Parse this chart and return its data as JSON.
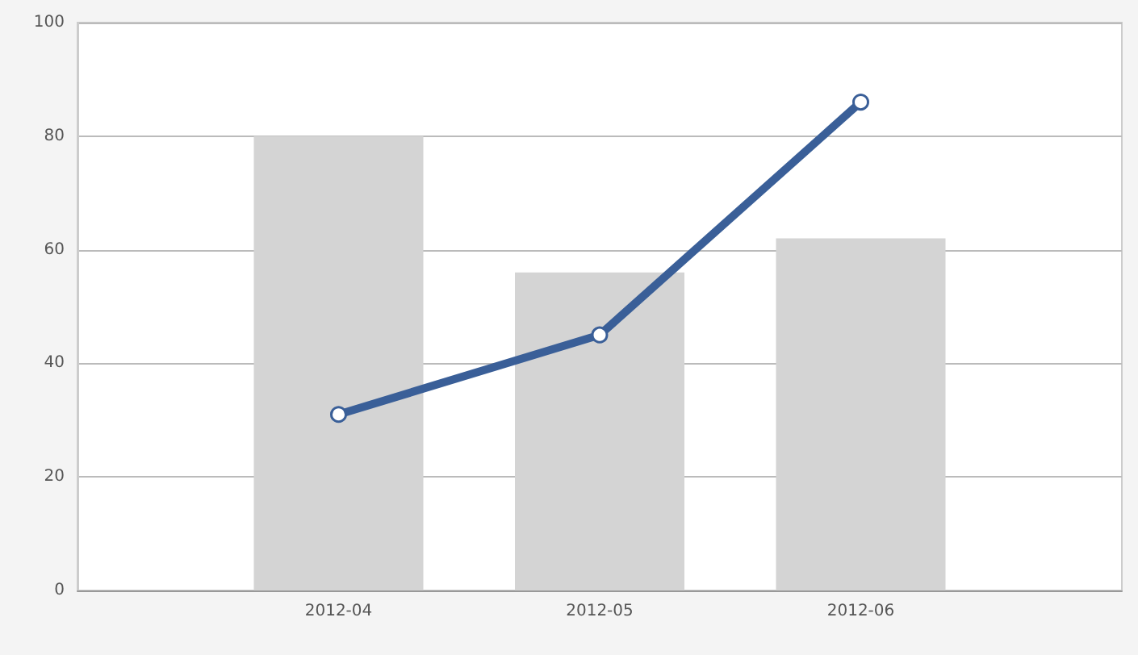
{
  "chart_data": {
    "type": "bar",
    "categories": [
      null,
      "2012-04",
      "2012-05",
      "2012-06",
      null
    ],
    "series": [
      {
        "color": "#d4d4d4",
        "values": [
          null,
          80,
          56,
          62,
          null
        ]
      },
      {
        "type": "line",
        "color": "#3a5f98",
        "values": [
          null,
          31,
          45,
          86,
          null
        ],
        "marker": "circle"
      }
    ],
    "ylim": [
      0,
      100
    ],
    "yticks": [
      0,
      20,
      40,
      60,
      80,
      100
    ],
    "grid": "y"
  }
}
